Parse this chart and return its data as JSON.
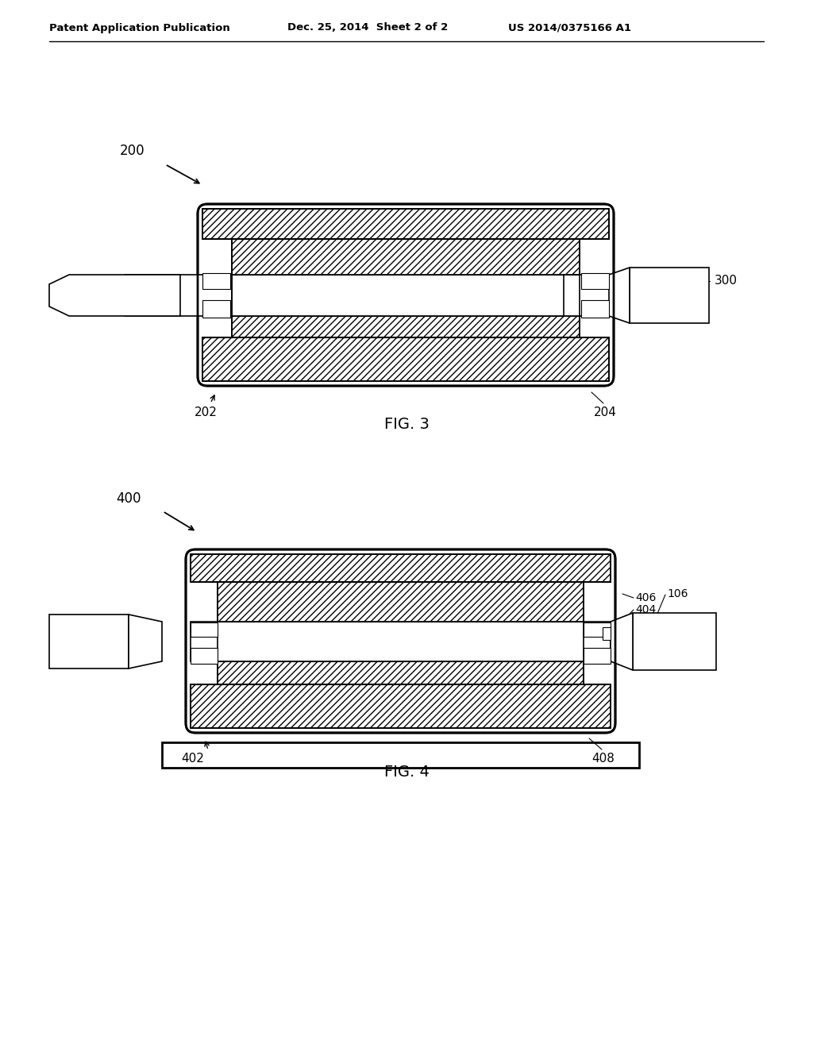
{
  "bg_color": "#ffffff",
  "lc": "#000000",
  "header_left": "Patent Application Publication",
  "header_mid": "Dec. 25, 2014  Sheet 2 of 2",
  "header_right": "US 2014/0375166 A1",
  "fig3_caption": "FIG. 3",
  "fig4_caption": "FIG. 4",
  "ref_200": "200",
  "ref_300": "300",
  "ref_202": "202",
  "ref_204": "204",
  "ref_400": "400",
  "ref_406": "406",
  "ref_404": "404",
  "ref_106": "106",
  "ref_402": "402",
  "ref_408": "408",
  "lw_outer": 2.0,
  "lw_inner": 1.2,
  "lw_thin": 0.8
}
